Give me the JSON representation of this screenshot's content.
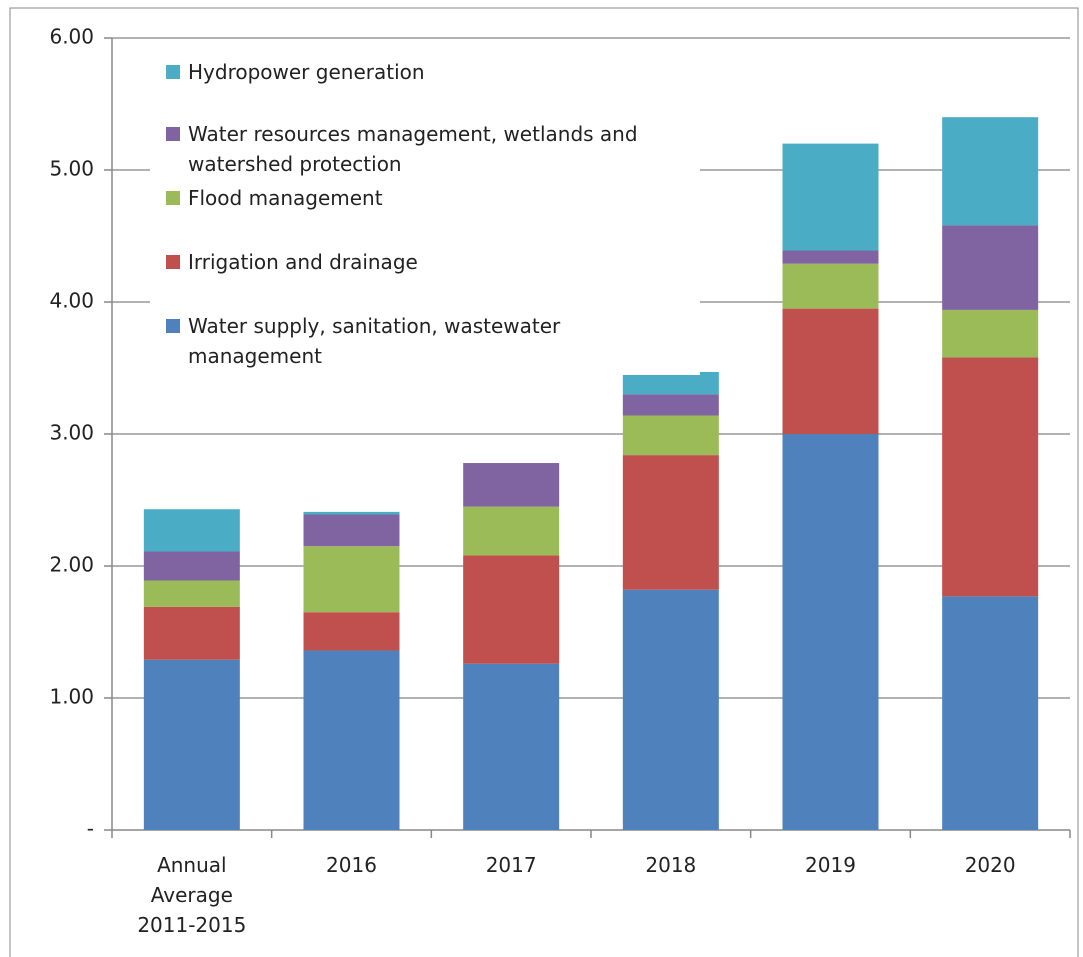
{
  "chart_data": {
    "type": "stacked_bar",
    "categories": [
      "Annual Average 2011-2015",
      "2016",
      "2017",
      "2018",
      "2019",
      "2020"
    ],
    "series": [
      {
        "name": "Water supply, sanitation, wastewater management",
        "color": "#4f81bd",
        "values": [
          1.29,
          1.36,
          1.26,
          1.82,
          3.0,
          1.77
        ]
      },
      {
        "name": "Irrigation and drainage",
        "color": "#c0504d",
        "values": [
          0.4,
          0.29,
          0.82,
          1.02,
          0.95,
          1.81
        ]
      },
      {
        "name": "Flood management",
        "color": "#9bbb59",
        "values": [
          0.2,
          0.5,
          0.37,
          0.3,
          0.34,
          0.36
        ]
      },
      {
        "name": "Water resources management, wetlands and watershed protection",
        "color": "#8064a2",
        "values": [
          0.22,
          0.24,
          0.33,
          0.16,
          0.1,
          0.64
        ]
      },
      {
        "name": "Hydropower generation",
        "color": "#4bacc6",
        "values": [
          0.32,
          0.02,
          0,
          0.17,
          0.81,
          0.82
        ]
      }
    ],
    "ylim": [
      0,
      6
    ],
    "yticks": [
      {
        "value": 0,
        "label": "-"
      },
      {
        "value": 1,
        "label": "1.00"
      },
      {
        "value": 2,
        "label": "2.00"
      },
      {
        "value": 3,
        "label": "3.00"
      },
      {
        "value": 4,
        "label": "4.00"
      },
      {
        "value": 5,
        "label": "5.00"
      },
      {
        "value": 6,
        "label": "6.00"
      }
    ],
    "grid": true,
    "legend": "top-left"
  }
}
